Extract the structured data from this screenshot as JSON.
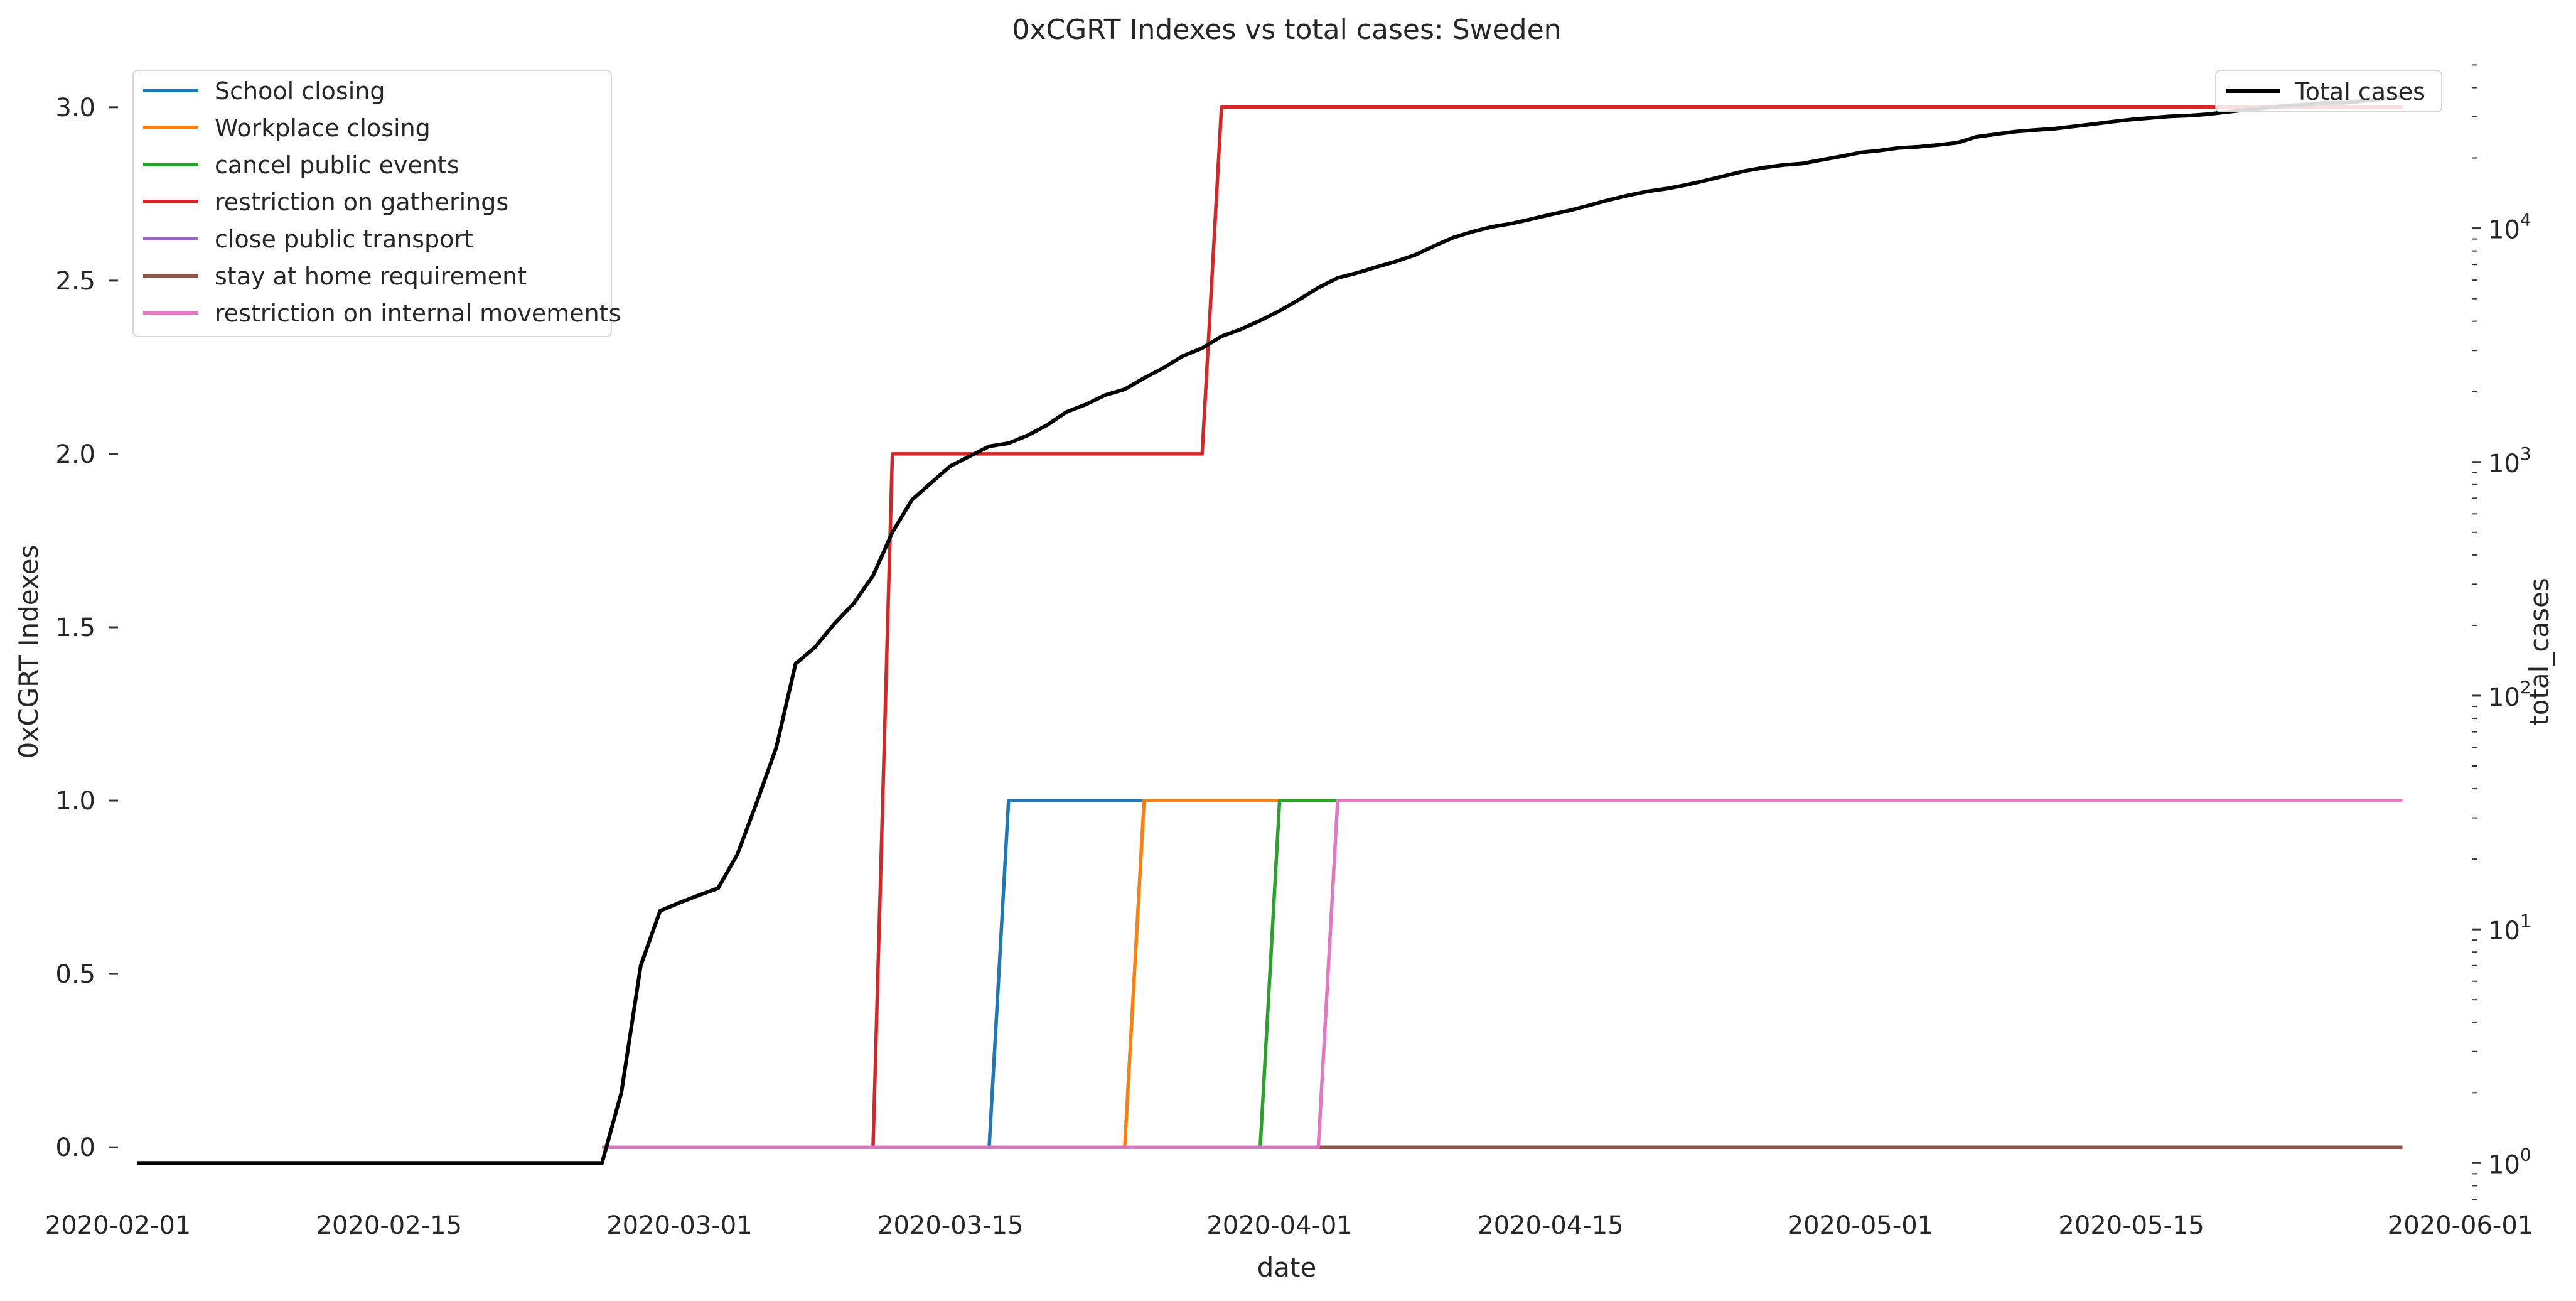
{
  "chart_data": {
    "type": "line",
    "title": "0xCGRT Indexes vs total cases:  Sweden",
    "xlabel": "date",
    "ylabel_left": "0xCGRT Indexes",
    "ylabel_right": "total_cases",
    "x_domain": [
      "2020-02-01",
      "2020-06-01"
    ],
    "x_ticks": [
      "2020-02-01",
      "2020-02-15",
      "2020-03-01",
      "2020-03-15",
      "2020-04-01",
      "2020-04-15",
      "2020-05-01",
      "2020-05-15",
      "2020-06-01"
    ],
    "y_left": {
      "range": [
        -0.15,
        3.15
      ],
      "ticks": [
        0.0,
        0.5,
        1.0,
        1.5,
        2.0,
        2.5,
        3.0
      ],
      "tick_labels": [
        "0.0",
        "0.5",
        "1.0",
        "1.5",
        "2.0",
        "2.5",
        "3.0"
      ]
    },
    "y_right": {
      "scale": "log",
      "range": [
        0.7,
        55000
      ],
      "ticks": [
        1,
        10,
        100,
        1000,
        10000
      ],
      "tick_labels": [
        {
          "base": "10",
          "exp": "0"
        },
        {
          "base": "10",
          "exp": "1"
        },
        {
          "base": "10",
          "exp": "2"
        },
        {
          "base": "10",
          "exp": "3"
        },
        {
          "base": "10",
          "exp": "4"
        }
      ]
    },
    "grid": false,
    "legend_left_placement": "top-left",
    "legend_right_placement": "top-right",
    "series": [
      {
        "name": "School closing",
        "color": "#1f77b4",
        "axis": "left",
        "points": [
          [
            "2020-02-26",
            0
          ],
          [
            "2020-03-17",
            0
          ],
          [
            "2020-03-18",
            1
          ],
          [
            "2020-05-29",
            1
          ]
        ]
      },
      {
        "name": "Workplace closing",
        "color": "#ff7f0e",
        "axis": "left",
        "points": [
          [
            "2020-02-26",
            0
          ],
          [
            "2020-03-24",
            0
          ],
          [
            "2020-03-25",
            1
          ],
          [
            "2020-05-29",
            1
          ]
        ]
      },
      {
        "name": "cancel public events",
        "color": "#2ca02c",
        "axis": "left",
        "points": [
          [
            "2020-02-26",
            0
          ],
          [
            "2020-03-31",
            0
          ],
          [
            "2020-04-01",
            1
          ],
          [
            "2020-05-29",
            1
          ]
        ]
      },
      {
        "name": "restriction on gatherings",
        "color": "#d62728",
        "axis": "left",
        "points": [
          [
            "2020-02-26",
            0
          ],
          [
            "2020-03-11",
            0
          ],
          [
            "2020-03-12",
            2
          ],
          [
            "2020-03-28",
            2
          ],
          [
            "2020-03-29",
            3
          ],
          [
            "2020-05-29",
            3
          ]
        ]
      },
      {
        "name": "close public transport",
        "color": "#9467bd",
        "axis": "left",
        "points": [
          [
            "2020-02-26",
            0
          ],
          [
            "2020-05-29",
            0
          ]
        ]
      },
      {
        "name": "stay at home requirement",
        "color": "#8c564b",
        "axis": "left",
        "points": [
          [
            "2020-02-26",
            0
          ],
          [
            "2020-05-29",
            0
          ]
        ]
      },
      {
        "name": "restriction on internal movements",
        "color": "#e377c2",
        "axis": "left",
        "points": [
          [
            "2020-02-26",
            0
          ],
          [
            "2020-04-03",
            0
          ],
          [
            "2020-04-04",
            1
          ],
          [
            "2020-05-29",
            1
          ]
        ]
      },
      {
        "name": "Total cases",
        "color": "#000000",
        "axis": "right",
        "points": [
          [
            "2020-02-02",
            1
          ],
          [
            "2020-02-26",
            1
          ],
          [
            "2020-02-27",
            2
          ],
          [
            "2020-02-28",
            7
          ],
          [
            "2020-02-29",
            12
          ],
          [
            "2020-03-01",
            13
          ],
          [
            "2020-03-02",
            14
          ],
          [
            "2020-03-03",
            15
          ],
          [
            "2020-03-04",
            21
          ],
          [
            "2020-03-05",
            35
          ],
          [
            "2020-03-06",
            60
          ],
          [
            "2020-03-07",
            137
          ],
          [
            "2020-03-08",
            161
          ],
          [
            "2020-03-09",
            203
          ],
          [
            "2020-03-10",
            248
          ],
          [
            "2020-03-11",
            326
          ],
          [
            "2020-03-12",
            500
          ],
          [
            "2020-03-13",
            687
          ],
          [
            "2020-03-14",
            814
          ],
          [
            "2020-03-15",
            961
          ],
          [
            "2020-03-16",
            1059
          ],
          [
            "2020-03-17",
            1167
          ],
          [
            "2020-03-18",
            1203
          ],
          [
            "2020-03-19",
            1301
          ],
          [
            "2020-03-20",
            1439
          ],
          [
            "2020-03-21",
            1639
          ],
          [
            "2020-03-22",
            1763
          ],
          [
            "2020-03-23",
            1934
          ],
          [
            "2020-03-24",
            2046
          ],
          [
            "2020-03-25",
            2286
          ],
          [
            "2020-03-26",
            2526
          ],
          [
            "2020-03-27",
            2840
          ],
          [
            "2020-03-28",
            3069
          ],
          [
            "2020-03-29",
            3447
          ],
          [
            "2020-03-30",
            3700
          ],
          [
            "2020-03-31",
            4028
          ],
          [
            "2020-04-01",
            4435
          ],
          [
            "2020-04-02",
            4947
          ],
          [
            "2020-04-03",
            5568
          ],
          [
            "2020-04-04",
            6131
          ],
          [
            "2020-04-05",
            6443
          ],
          [
            "2020-04-06",
            6830
          ],
          [
            "2020-04-07",
            7206
          ],
          [
            "2020-04-08",
            7693
          ],
          [
            "2020-04-09",
            8419
          ],
          [
            "2020-04-10",
            9141
          ],
          [
            "2020-04-11",
            9685
          ],
          [
            "2020-04-12",
            10151
          ],
          [
            "2020-04-13",
            10483
          ],
          [
            "2020-04-14",
            10948
          ],
          [
            "2020-04-15",
            11445
          ],
          [
            "2020-04-16",
            11927
          ],
          [
            "2020-04-17",
            12540
          ],
          [
            "2020-04-18",
            13216
          ],
          [
            "2020-04-19",
            13822
          ],
          [
            "2020-04-20",
            14385
          ],
          [
            "2020-04-21",
            14777
          ],
          [
            "2020-04-22",
            15322
          ],
          [
            "2020-04-23",
            16004
          ],
          [
            "2020-04-24",
            16755
          ],
          [
            "2020-04-25",
            17567
          ],
          [
            "2020-04-26",
            18177
          ],
          [
            "2020-04-27",
            18640
          ],
          [
            "2020-04-28",
            18926
          ],
          [
            "2020-04-29",
            19621
          ],
          [
            "2020-04-30",
            20302
          ],
          [
            "2020-05-01",
            21092
          ],
          [
            "2020-05-02",
            21520
          ],
          [
            "2020-05-03",
            22082
          ],
          [
            "2020-05-04",
            22317
          ],
          [
            "2020-05-05",
            22721
          ],
          [
            "2020-05-06",
            23216
          ],
          [
            "2020-05-07",
            24623
          ],
          [
            "2020-05-08",
            25265
          ],
          [
            "2020-05-09",
            25921
          ],
          [
            "2020-05-10",
            26322
          ],
          [
            "2020-05-11",
            26670
          ],
          [
            "2020-05-12",
            27272
          ],
          [
            "2020-05-13",
            27909
          ],
          [
            "2020-05-14",
            28582
          ],
          [
            "2020-05-15",
            29207
          ],
          [
            "2020-05-16",
            29677
          ],
          [
            "2020-05-17",
            30143
          ],
          [
            "2020-05-18",
            30377
          ],
          [
            "2020-05-19",
            30799
          ],
          [
            "2020-05-20",
            31523
          ],
          [
            "2020-05-21",
            32172
          ],
          [
            "2020-05-22",
            32809
          ],
          [
            "2020-05-23",
            33459
          ],
          [
            "2020-05-24",
            33843
          ],
          [
            "2020-05-25",
            34440
          ],
          [
            "2020-05-26",
            34440
          ],
          [
            "2020-05-27",
            35088
          ],
          [
            "2020-05-28",
            35727
          ],
          [
            "2020-05-29",
            36476
          ]
        ]
      }
    ]
  }
}
